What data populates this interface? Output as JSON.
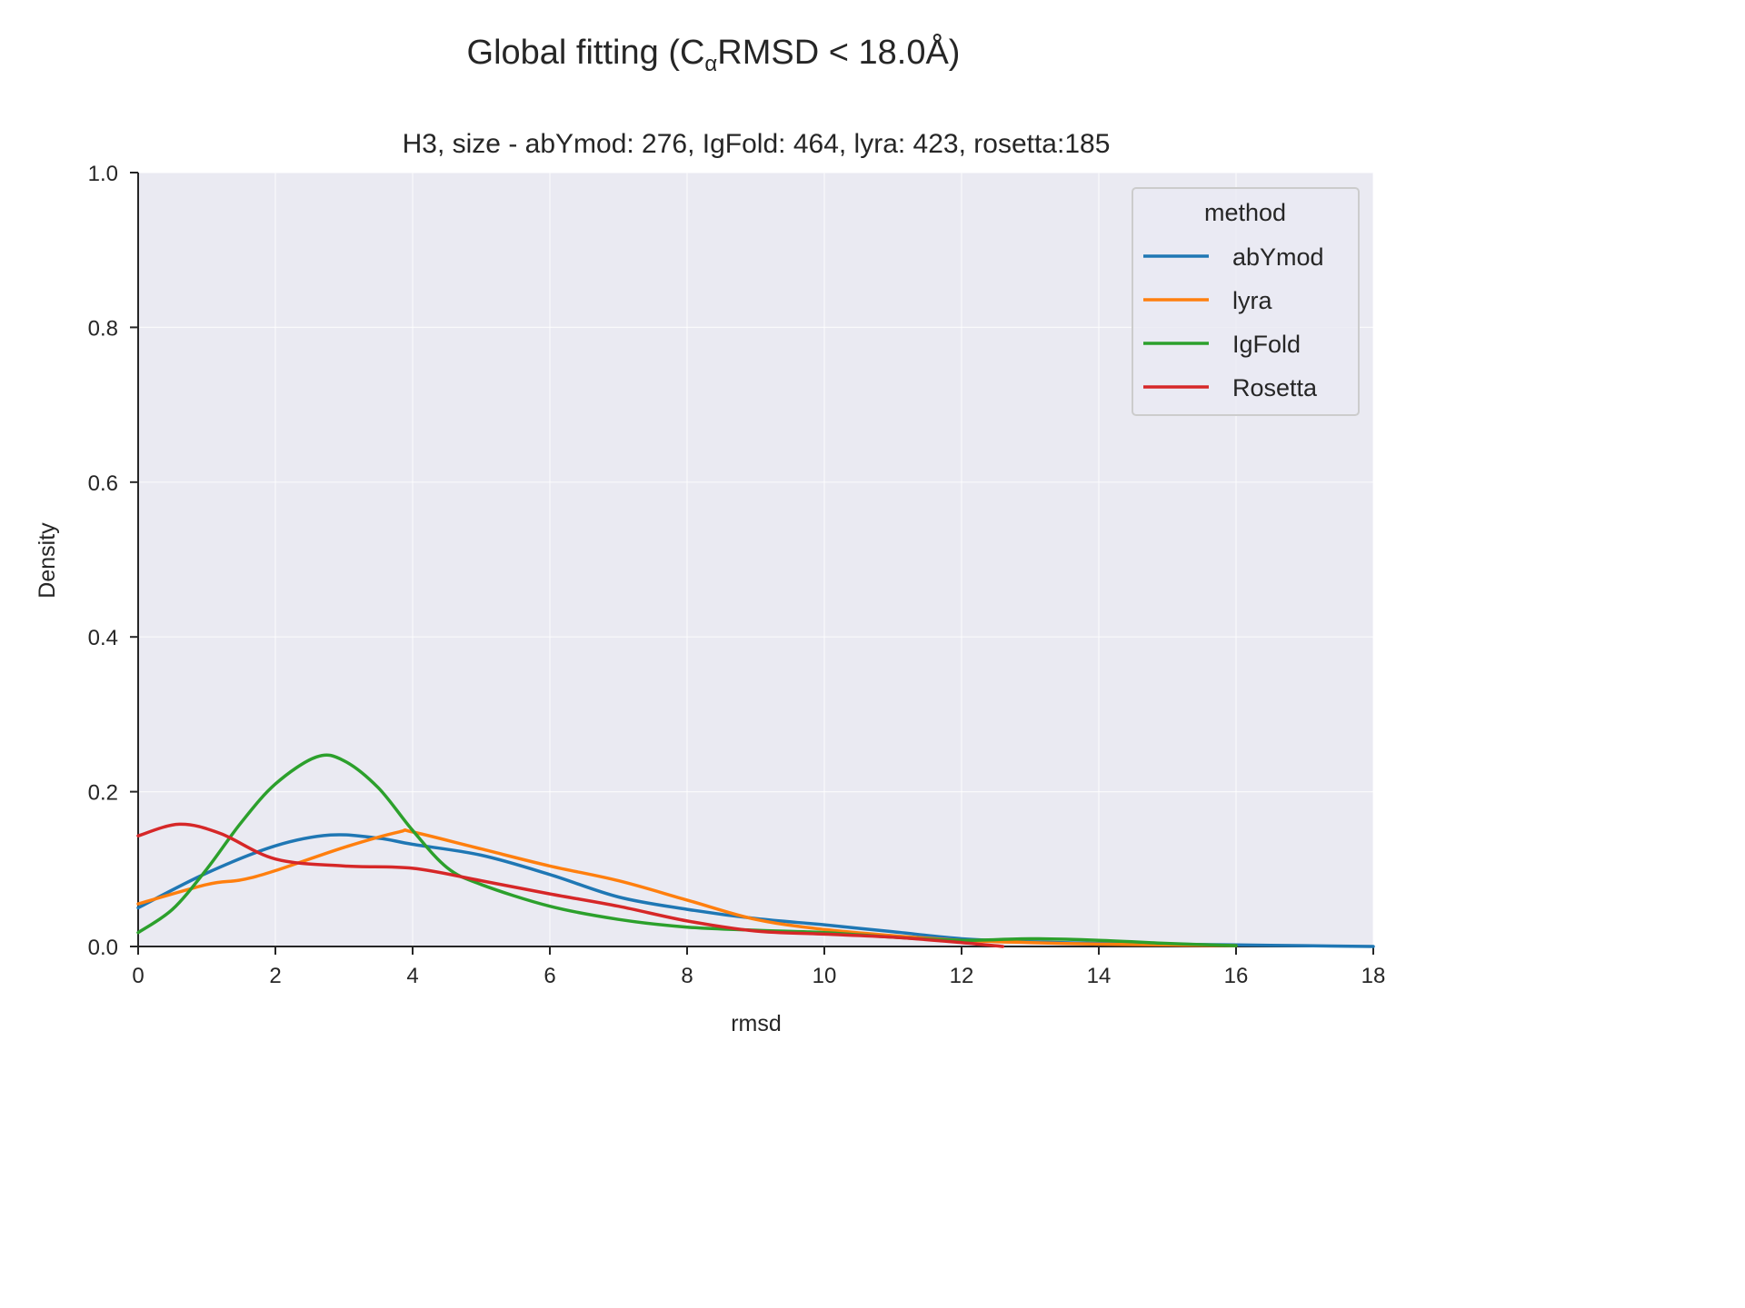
{
  "chart_data": {
    "type": "line",
    "suptitle_main": "Global fitting (C",
    "suptitle_sub": "α",
    "suptitle_rest": "RMSD  < 18.0Å)",
    "title": "H3, size - abYmod: 276, IgFold: 464, lyra: 423, rosetta:185",
    "xlabel": "rmsd",
    "ylabel": "Density",
    "xlim": [
      0,
      18
    ],
    "ylim": [
      0,
      1.0
    ],
    "xticks": [
      0,
      2,
      4,
      6,
      8,
      10,
      12,
      14,
      16,
      18
    ],
    "xtick_labels": [
      "0",
      "2",
      "4",
      "6",
      "8",
      "10",
      "12",
      "14",
      "16",
      "18"
    ],
    "yticks": [
      0.0,
      0.2,
      0.4,
      0.6,
      0.8,
      1.0
    ],
    "ytick_labels": [
      "0.0",
      "0.2",
      "0.4",
      "0.6",
      "0.8",
      "1.0"
    ],
    "grid": true,
    "legend": {
      "title": "method",
      "position": "top-right"
    },
    "series": [
      {
        "name": "abYmod",
        "color": "#1f77b4",
        "x": [
          0,
          1,
          2,
          2.8,
          3.5,
          4,
          5,
          6,
          7,
          8,
          9,
          10,
          11,
          12,
          13,
          14,
          15,
          16,
          17,
          18
        ],
        "y": [
          0.05,
          0.095,
          0.13,
          0.144,
          0.14,
          0.132,
          0.118,
          0.093,
          0.064,
          0.048,
          0.036,
          0.028,
          0.019,
          0.01,
          0.006,
          0.004,
          0.003,
          0.002,
          0.001,
          0.0
        ]
      },
      {
        "name": "lyra",
        "color": "#ff7f0e",
        "x": [
          0,
          1,
          1.5,
          2,
          3,
          3.8,
          4,
          5,
          6,
          7,
          8,
          9,
          10,
          11,
          12,
          13,
          14,
          15,
          16
        ],
        "y": [
          0.055,
          0.08,
          0.086,
          0.098,
          0.128,
          0.148,
          0.148,
          0.126,
          0.104,
          0.085,
          0.06,
          0.035,
          0.022,
          0.014,
          0.008,
          0.005,
          0.003,
          0.002,
          0.001
        ]
      },
      {
        "name": "IgFold",
        "color": "#2ca02c",
        "x": [
          0,
          0.5,
          1,
          1.5,
          2,
          2.6,
          3,
          3.5,
          4,
          4.5,
          5,
          6,
          7,
          8,
          9,
          10,
          11,
          12,
          13,
          14,
          15,
          16
        ],
        "y": [
          0.018,
          0.048,
          0.1,
          0.16,
          0.21,
          0.245,
          0.24,
          0.205,
          0.15,
          0.102,
          0.08,
          0.052,
          0.035,
          0.025,
          0.021,
          0.018,
          0.012,
          0.008,
          0.01,
          0.008,
          0.004,
          0.001
        ]
      },
      {
        "name": "Rosetta",
        "color": "#d62728",
        "x": [
          0,
          0.6,
          1.2,
          2,
          3,
          4,
          5,
          6,
          7,
          8,
          9,
          10,
          11,
          12,
          12.6
        ],
        "y": [
          0.143,
          0.158,
          0.146,
          0.113,
          0.104,
          0.101,
          0.085,
          0.068,
          0.052,
          0.033,
          0.02,
          0.016,
          0.012,
          0.005,
          0.0
        ]
      }
    ]
  }
}
